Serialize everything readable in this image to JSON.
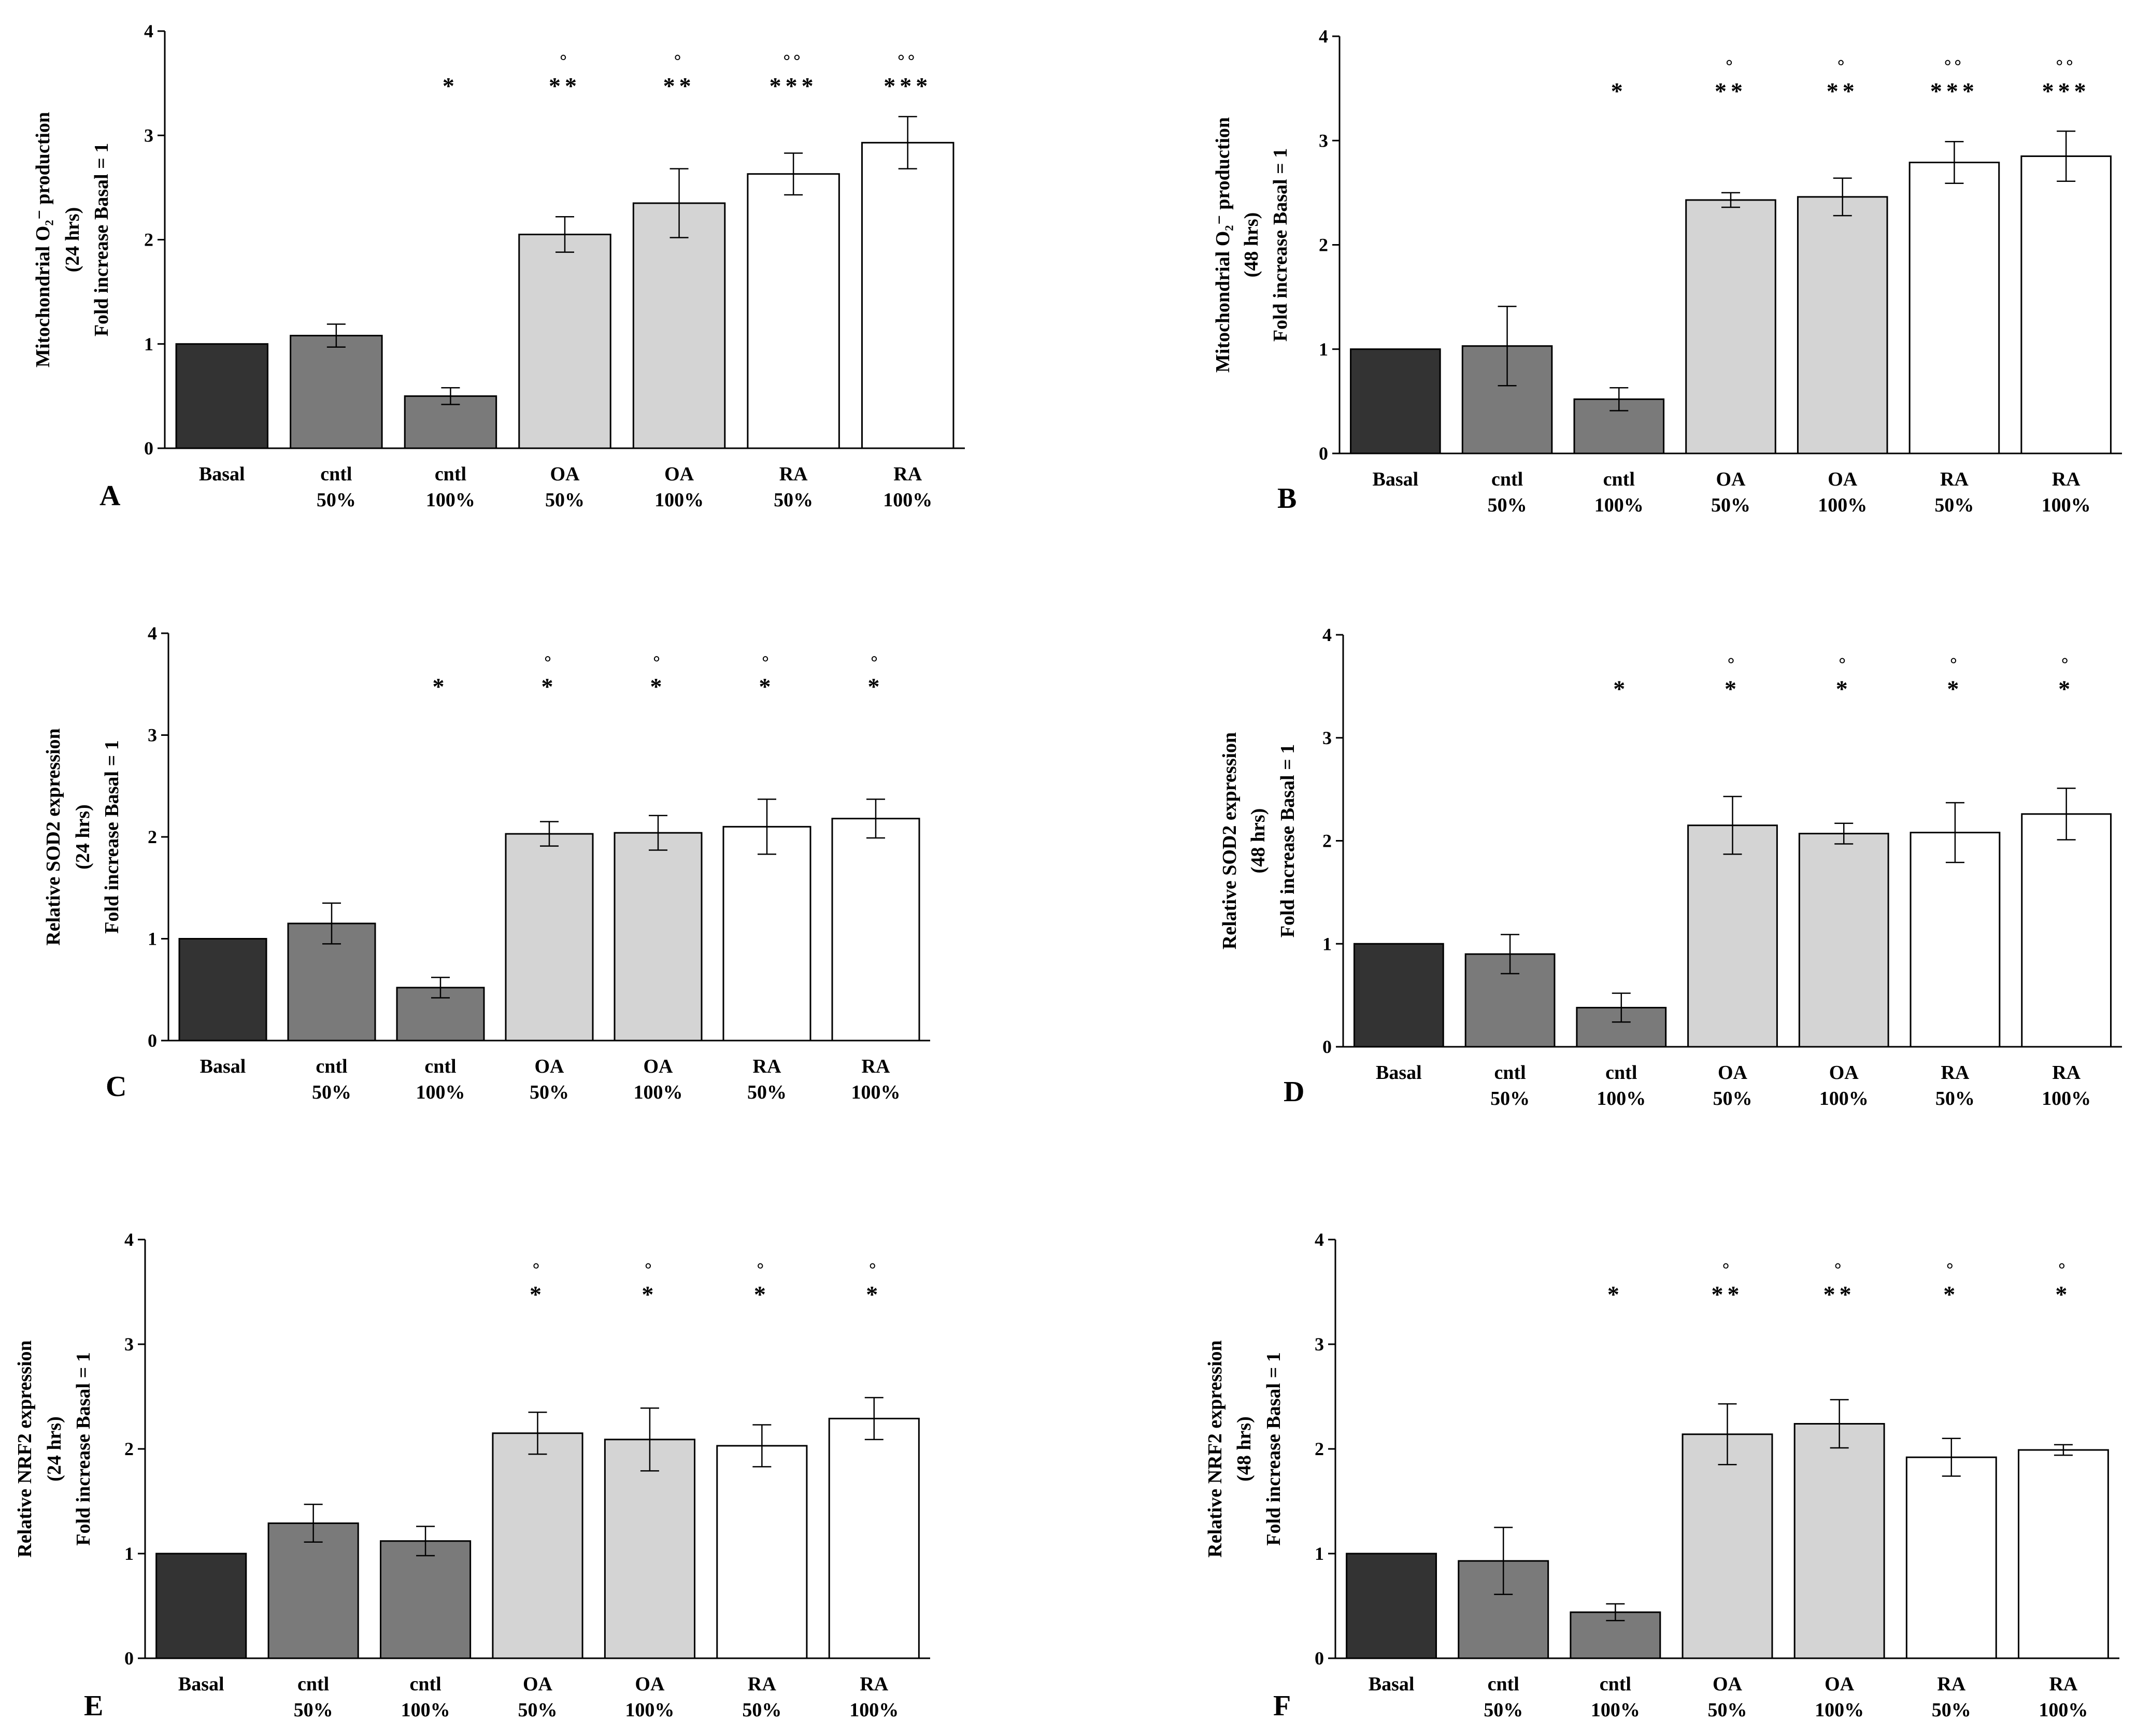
{
  "chart_data": [
    {
      "panel": "A",
      "type": "bar",
      "ylabel": [
        "Mitochondrial O₂⁻ production",
        "(24 hrs)",
        "Fold increase Basal = 1"
      ],
      "ylim": [
        0,
        4
      ],
      "yticks": [
        0,
        1,
        2,
        3,
        4
      ],
      "categories": [
        [
          "Basal",
          ""
        ],
        [
          "cntl",
          "50%"
        ],
        [
          "cntl",
          "100%"
        ],
        [
          "OA",
          "50%"
        ],
        [
          "OA",
          "100%"
        ],
        [
          "RA",
          "50%"
        ],
        [
          "RA",
          "100%"
        ]
      ],
      "values": [
        1.0,
        1.08,
        0.5,
        2.05,
        2.35,
        2.63,
        2.93
      ],
      "errors": [
        0,
        0.11,
        0.08,
        0.17,
        0.33,
        0.2,
        0.25
      ],
      "fills": [
        "#333333",
        "#7a7a7a",
        "#7a7a7a",
        "#d4d4d4",
        "#d4d4d4",
        "#ffffff",
        "#ffffff"
      ],
      "stars": [
        "",
        "",
        "*",
        "**",
        "**",
        "***",
        "***"
      ],
      "circles": [
        "",
        "",
        "",
        "°",
        "°",
        "°°",
        "°°"
      ]
    },
    {
      "panel": "B",
      "type": "bar",
      "ylabel": [
        "Mitochondrial O₂⁻ production",
        "(48 hrs)",
        "Fold increase Basal = 1"
      ],
      "ylim": [
        0,
        4
      ],
      "yticks": [
        0,
        1,
        2,
        3,
        4
      ],
      "categories": [
        [
          "Basal",
          ""
        ],
        [
          "cntl",
          "50%"
        ],
        [
          "cntl",
          "100%"
        ],
        [
          "OA",
          "50%"
        ],
        [
          "OA",
          "100%"
        ],
        [
          "RA",
          "50%"
        ],
        [
          "RA",
          "100%"
        ]
      ],
      "values": [
        1.0,
        1.03,
        0.52,
        2.43,
        2.46,
        2.79,
        2.85
      ],
      "errors": [
        0,
        0.38,
        0.11,
        0.07,
        0.18,
        0.2,
        0.24
      ],
      "fills": [
        "#333333",
        "#7a7a7a",
        "#7a7a7a",
        "#d4d4d4",
        "#d4d4d4",
        "#ffffff",
        "#ffffff"
      ],
      "stars": [
        "",
        "",
        "*",
        "**",
        "**",
        "***",
        "***"
      ],
      "circles": [
        "",
        "",
        "",
        "°",
        "°",
        "°°",
        "°°"
      ]
    },
    {
      "panel": "C",
      "type": "bar",
      "ylabel": [
        "Relative SOD2 expression",
        "(24 hrs)",
        "Fold increase Basal = 1"
      ],
      "ylim": [
        0,
        4
      ],
      "yticks": [
        0,
        1,
        2,
        3,
        4
      ],
      "categories": [
        [
          "Basal",
          ""
        ],
        [
          "cntl",
          "50%"
        ],
        [
          "cntl",
          "100%"
        ],
        [
          "OA",
          "50%"
        ],
        [
          "OA",
          "100%"
        ],
        [
          "RA",
          "50%"
        ],
        [
          "RA",
          "100%"
        ]
      ],
      "values": [
        1.0,
        1.15,
        0.52,
        2.03,
        2.04,
        2.1,
        2.18
      ],
      "errors": [
        0,
        0.2,
        0.1,
        0.12,
        0.17,
        0.27,
        0.19
      ],
      "fills": [
        "#333333",
        "#7a7a7a",
        "#7a7a7a",
        "#d4d4d4",
        "#d4d4d4",
        "#ffffff",
        "#ffffff"
      ],
      "stars": [
        "",
        "",
        "*",
        "*",
        "*",
        "*",
        "*"
      ],
      "circles": [
        "",
        "",
        "",
        "°",
        "°",
        "°",
        "°"
      ]
    },
    {
      "panel": "D",
      "type": "bar",
      "ylabel": [
        "Relative SOD2 expression",
        "(48 hrs)",
        "Fold increase Basal = 1"
      ],
      "ylim": [
        0,
        4
      ],
      "yticks": [
        0,
        1,
        2,
        3,
        4
      ],
      "categories": [
        [
          "Basal",
          ""
        ],
        [
          "cntl",
          "50%"
        ],
        [
          "cntl",
          "100%"
        ],
        [
          "OA",
          "50%"
        ],
        [
          "OA",
          "100%"
        ],
        [
          "RA",
          "50%"
        ],
        [
          "RA",
          "100%"
        ]
      ],
      "values": [
        1.0,
        0.9,
        0.38,
        2.15,
        2.07,
        2.08,
        2.26
      ],
      "errors": [
        0,
        0.19,
        0.14,
        0.28,
        0.1,
        0.29,
        0.25
      ],
      "fills": [
        "#333333",
        "#7a7a7a",
        "#7a7a7a",
        "#d4d4d4",
        "#d4d4d4",
        "#ffffff",
        "#ffffff"
      ],
      "stars": [
        "",
        "",
        "*",
        "*",
        "*",
        "*",
        "*"
      ],
      "circles": [
        "",
        "",
        "",
        "°",
        "°",
        "°",
        "°"
      ]
    },
    {
      "panel": "E",
      "type": "bar",
      "ylabel": [
        "Relative NRF2 expression",
        "(24 hrs)",
        "Fold increase Basal = 1"
      ],
      "ylim": [
        0,
        4
      ],
      "yticks": [
        0,
        1,
        2,
        3,
        4
      ],
      "categories": [
        [
          "Basal",
          ""
        ],
        [
          "cntl",
          "50%"
        ],
        [
          "cntl",
          "100%"
        ],
        [
          "OA",
          "50%"
        ],
        [
          "OA",
          "100%"
        ],
        [
          "RA",
          "50%"
        ],
        [
          "RA",
          "100%"
        ]
      ],
      "values": [
        1.0,
        1.29,
        1.12,
        2.15,
        2.09,
        2.03,
        2.29
      ],
      "errors": [
        0,
        0.18,
        0.14,
        0.2,
        0.3,
        0.2,
        0.2
      ],
      "fills": [
        "#333333",
        "#7a7a7a",
        "#7a7a7a",
        "#d4d4d4",
        "#d4d4d4",
        "#ffffff",
        "#ffffff"
      ],
      "stars": [
        "",
        "",
        "",
        "*",
        "*",
        "*",
        "*"
      ],
      "circles": [
        "",
        "",
        "",
        "°",
        "°",
        "°",
        "°"
      ]
    },
    {
      "panel": "F",
      "type": "bar",
      "ylabel": [
        "Relative NRF2 expression",
        "(48 hrs)",
        "Fold increase Basal = 1"
      ],
      "ylim": [
        0,
        4
      ],
      "yticks": [
        0,
        1,
        2,
        3,
        4
      ],
      "categories": [
        [
          "Basal",
          ""
        ],
        [
          "cntl",
          "50%"
        ],
        [
          "cntl",
          "100%"
        ],
        [
          "OA",
          "50%"
        ],
        [
          "OA",
          "100%"
        ],
        [
          "RA",
          "50%"
        ],
        [
          "RA",
          "100%"
        ]
      ],
      "values": [
        1.0,
        0.93,
        0.44,
        2.14,
        2.24,
        1.92,
        1.99
      ],
      "errors": [
        0,
        0.32,
        0.08,
        0.29,
        0.23,
        0.18,
        0.05
      ],
      "fills": [
        "#333333",
        "#7a7a7a",
        "#7a7a7a",
        "#d4d4d4",
        "#d4d4d4",
        "#ffffff",
        "#ffffff"
      ],
      "stars": [
        "",
        "",
        "*",
        "**",
        "**",
        "*",
        "*"
      ],
      "circles": [
        "",
        "",
        "",
        "°",
        "°",
        "°",
        "°"
      ]
    }
  ]
}
